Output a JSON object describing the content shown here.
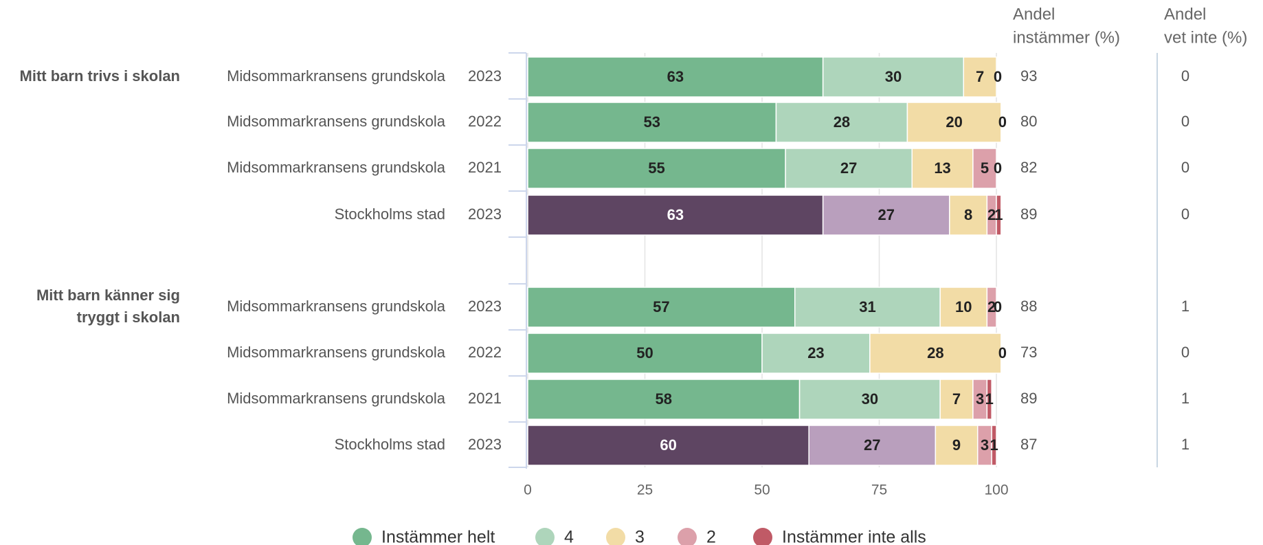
{
  "chart_data": {
    "type": "bar",
    "stacked": true,
    "orientation": "horizontal",
    "xlim": [
      0,
      100
    ],
    "xticks": [
      0,
      25,
      50,
      75,
      100
    ],
    "grid": true,
    "legend_position": "bottom",
    "side_columns": [
      {
        "key": "instammer",
        "header": [
          "Andel",
          "instämmer (%)"
        ]
      },
      {
        "key": "vet_inte",
        "header": [
          "Andel",
          "vet inte (%)"
        ]
      }
    ],
    "series": [
      {
        "name": "Instämmer helt",
        "color": "#75b78e"
      },
      {
        "name": "4",
        "color": "#aed5bb"
      },
      {
        "name": "3",
        "color": "#f2dca6"
      },
      {
        "name": "2",
        "color": "#dca0aa"
      },
      {
        "name": "Instämmer inte alls",
        "color": "#c05a66"
      }
    ],
    "city_colors": [
      "#5e4562",
      "#b99fbd",
      "#f2dca6",
      "#dca0aa",
      "#c05a66"
    ],
    "groups": [
      {
        "question": [
          "Mitt barn trivs i skolan"
        ],
        "rows": [
          {
            "school": "Midsommarkransens grundskola",
            "year": "2023",
            "values": [
              63,
              30,
              7,
              0,
              0
            ],
            "labels": [
              "63",
              "30",
              "7",
              "0",
              ""
            ],
            "instammer": "93",
            "vet_inte": "0",
            "city": false
          },
          {
            "school": "Midsommarkransens grundskola",
            "year": "2022",
            "values": [
              53,
              28,
              20,
              0,
              0
            ],
            "labels": [
              "53",
              "28",
              "20",
              "0",
              ""
            ],
            "instammer": "80",
            "vet_inte": "0",
            "city": false
          },
          {
            "school": "Midsommarkransens grundskola",
            "year": "2021",
            "values": [
              55,
              27,
              13,
              5,
              0
            ],
            "labels": [
              "55",
              "27",
              "13",
              "5",
              "0"
            ],
            "instammer": "82",
            "vet_inte": "0",
            "city": false
          },
          {
            "school": "Stockholms stad",
            "year": "2023",
            "values": [
              63,
              27,
              8,
              2,
              1
            ],
            "labels": [
              "63",
              "27",
              "8",
              "2",
              "1"
            ],
            "instammer": "89",
            "vet_inte": "0",
            "city": true
          }
        ]
      },
      {
        "question": [
          "Mitt barn känner sig",
          "tryggt i skolan"
        ],
        "rows": [
          {
            "school": "Midsommarkransens grundskola",
            "year": "2023",
            "values": [
              57,
              31,
              10,
              2,
              0
            ],
            "labels": [
              "57",
              "31",
              "10",
              "2",
              "0"
            ],
            "instammer": "88",
            "vet_inte": "1",
            "city": false
          },
          {
            "school": "Midsommarkransens grundskola",
            "year": "2022",
            "values": [
              50,
              23,
              28,
              0,
              0
            ],
            "labels": [
              "50",
              "23",
              "28",
              "0",
              ""
            ],
            "instammer": "73",
            "vet_inte": "0",
            "city": false
          },
          {
            "school": "Midsommarkransens grundskola",
            "year": "2021",
            "values": [
              58,
              30,
              7,
              3,
              1
            ],
            "labels": [
              "58",
              "30",
              "7",
              "3",
              "1"
            ],
            "instammer": "89",
            "vet_inte": "1",
            "city": false
          },
          {
            "school": "Stockholms stad",
            "year": "2023",
            "values": [
              60,
              27,
              9,
              3,
              1
            ],
            "labels": [
              "60",
              "27",
              "9",
              "3",
              "1"
            ],
            "instammer": "87",
            "vet_inte": "1",
            "city": true
          }
        ]
      }
    ]
  }
}
